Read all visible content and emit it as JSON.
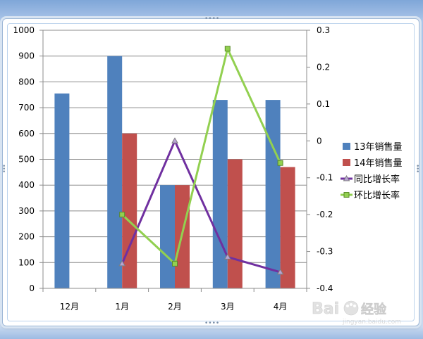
{
  "chart_data": {
    "type": "bar",
    "categories": [
      "12月",
      "1月",
      "2月",
      "3月",
      "4月"
    ],
    "y_left": {
      "ylim": [
        0,
        1000
      ],
      "ticks": [
        "0",
        "100",
        "200",
        "300",
        "400",
        "500",
        "600",
        "700",
        "800",
        "900",
        "1000"
      ]
    },
    "y_right": {
      "ylim": [
        -0.4,
        0.3
      ],
      "ticks": [
        "-0.4",
        "-0.3",
        "-0.2",
        "-0.1",
        "0",
        "0.1",
        "0.2",
        "0.3"
      ]
    },
    "grid": true,
    "legend": "right",
    "series": [
      {
        "name": "13年销售量",
        "kind": "bar",
        "axis": "left",
        "color": "#4f81bd",
        "values": [
          755,
          900,
          400,
          730,
          730
        ]
      },
      {
        "name": "14年销售量",
        "kind": "bar",
        "axis": "left",
        "color": "#c0504d",
        "values": [
          null,
          600,
          400,
          500,
          470
        ]
      },
      {
        "name": "同比增长率",
        "kind": "line",
        "axis": "right",
        "color": "#7030a0",
        "marker": "triangle",
        "values": [
          null,
          -0.333,
          0.0,
          -0.315,
          -0.356
        ]
      },
      {
        "name": "环比增长率",
        "kind": "line",
        "axis": "right",
        "color": "#92d050",
        "marker": "square",
        "values": [
          null,
          -0.2,
          -0.333,
          0.25,
          -0.06
        ]
      }
    ]
  },
  "watermark": {
    "text": "Bai 经验",
    "sub": "jingyan.baidu.com"
  }
}
